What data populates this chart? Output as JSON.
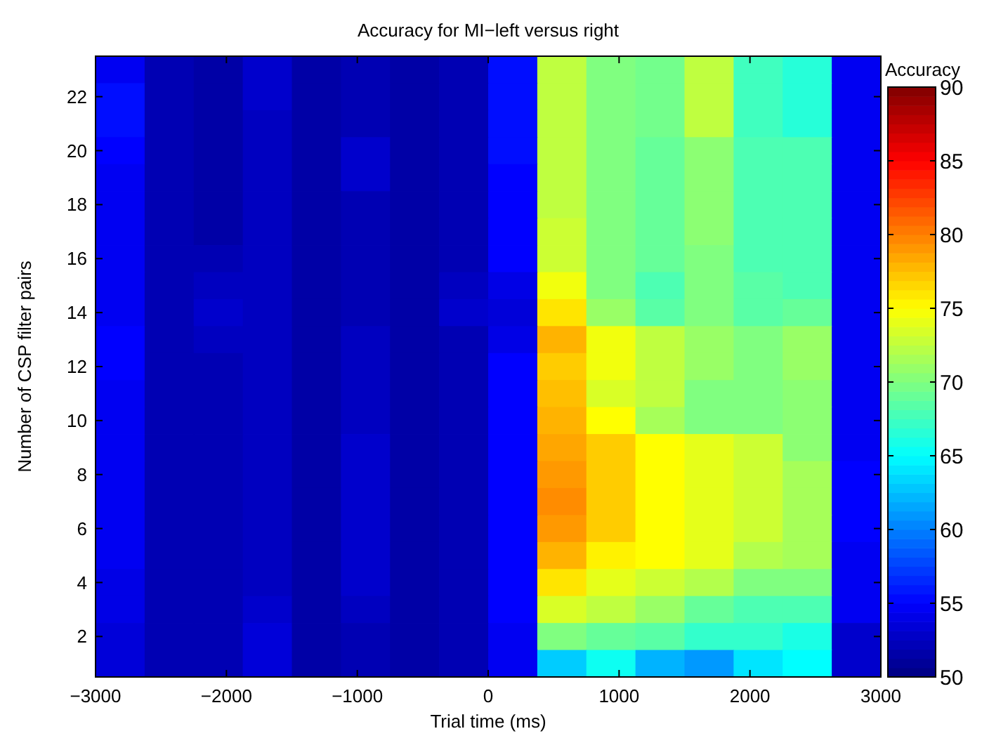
{
  "chart_data": {
    "type": "heatmap",
    "title": "Accuracy for MI−left versus right",
    "xlabel": "Trial time (ms)",
    "ylabel": "Number of CSP filter pairs",
    "clabel": "Accuracy",
    "x": [
      -2812.5,
      -2437.5,
      -2062.5,
      -1687.5,
      -1312.5,
      -937.5,
      -562.5,
      -187.5,
      187.5,
      562.5,
      937.5,
      1312.5,
      1687.5,
      2062.5,
      2437.5,
      2812.5
    ],
    "y": [
      23,
      22,
      21,
      20,
      19,
      18,
      17,
      16,
      15,
      14,
      13,
      12,
      11,
      10,
      9,
      8,
      7,
      6,
      5,
      4,
      3,
      2,
      1
    ],
    "xlim": [
      -3000,
      3000
    ],
    "xticks": [
      {
        "value": -3000,
        "label": "−3000"
      },
      {
        "value": -2000,
        "label": "−2000"
      },
      {
        "value": -1000,
        "label": "−1000"
      },
      0,
      1000,
      2000,
      3000
    ],
    "ylim": [
      0.5,
      23.5
    ],
    "yticks": [
      2,
      4,
      6,
      8,
      10,
      12,
      14,
      16,
      18,
      20,
      22
    ],
    "clim": [
      50,
      90
    ],
    "cticks": [
      50,
      55,
      60,
      65,
      70,
      75,
      80,
      85,
      90
    ],
    "cells": [
      [
        54.5,
        52,
        51.5,
        53,
        51.5,
        52,
        51.5,
        52,
        55.5,
        72.5,
        70,
        69.5,
        72.5,
        67.5,
        66.5,
        54.5
      ],
      [
        55.5,
        52,
        51.5,
        53,
        51.5,
        52,
        51.5,
        52,
        55.5,
        72.5,
        70,
        69.5,
        72.5,
        67.5,
        66.5,
        54.5
      ],
      [
        55.5,
        52,
        51.5,
        52.5,
        51.5,
        52,
        51.5,
        52,
        55.5,
        72.5,
        70,
        69.5,
        72.5,
        67.5,
        66.5,
        54.5
      ],
      [
        55,
        52,
        51.5,
        52.5,
        51.5,
        53,
        51.5,
        52,
        55.5,
        72.5,
        70,
        69,
        70.5,
        68,
        68,
        54.5
      ],
      [
        54.5,
        52,
        51.5,
        52.5,
        51.5,
        53,
        51.5,
        52,
        55,
        72.5,
        70,
        69,
        70.5,
        68,
        68,
        54.5
      ],
      [
        54.5,
        52,
        51.5,
        52.5,
        51.5,
        52,
        51.5,
        52,
        55,
        72.5,
        70,
        69,
        70.5,
        68,
        68,
        54.5
      ],
      [
        54.5,
        52,
        51.5,
        52.5,
        51.5,
        52,
        51.5,
        52,
        55,
        73,
        70,
        69,
        70.5,
        68,
        68,
        54.5
      ],
      [
        54.5,
        52,
        52,
        52.5,
        51.5,
        52,
        51.5,
        52,
        55,
        73,
        70,
        69,
        70,
        68,
        68,
        54.5
      ],
      [
        54.5,
        52,
        52.5,
        52.5,
        51.5,
        52,
        51.5,
        52.5,
        54,
        74.5,
        70,
        68,
        70,
        68.5,
        68,
        54.5
      ],
      [
        54.5,
        52,
        53,
        52.5,
        51.5,
        52,
        51.5,
        53,
        53.5,
        76,
        71,
        68.5,
        70,
        68.5,
        69,
        54.5
      ],
      [
        55,
        52,
        52.5,
        52.5,
        51.5,
        52.5,
        51.5,
        52,
        54,
        78,
        74.5,
        72.5,
        71,
        70,
        71,
        54.5
      ],
      [
        55,
        52,
        52,
        52.5,
        51.5,
        52.5,
        51.5,
        52,
        55,
        77,
        74.5,
        72.5,
        71,
        70,
        71,
        54.5
      ],
      [
        54.5,
        52,
        52,
        52.5,
        51.5,
        52.5,
        51.5,
        52,
        55,
        77.5,
        73.5,
        72.5,
        70,
        70,
        70.5,
        54.5
      ],
      [
        54.5,
        52,
        52,
        52.5,
        51.5,
        52.5,
        51.5,
        52,
        55,
        78,
        75,
        71.5,
        70,
        70,
        70.5,
        54.5
      ],
      [
        54.5,
        52,
        52,
        52.5,
        51.5,
        53,
        51.5,
        52,
        55,
        78.5,
        77,
        75,
        74,
        73,
        70.5,
        54.5
      ],
      [
        54.5,
        52,
        52,
        52.5,
        51.5,
        53,
        51.5,
        52,
        55,
        79,
        77,
        75,
        74,
        73,
        71.5,
        55
      ],
      [
        54.5,
        52,
        52,
        52.5,
        51.5,
        53,
        51.5,
        52,
        55,
        79.5,
        77,
        75,
        74,
        73,
        71.5,
        55
      ],
      [
        54.5,
        52,
        52,
        52.5,
        51.5,
        53,
        51.5,
        52,
        55,
        79,
        77,
        75,
        74,
        73,
        71.5,
        55
      ],
      [
        54.5,
        52,
        52,
        52.5,
        51.5,
        53,
        51.5,
        52,
        55,
        78,
        75.5,
        75,
        74,
        72,
        71.5,
        54.5
      ],
      [
        54,
        52,
        52,
        52.5,
        51.5,
        53,
        51.5,
        52,
        55,
        76,
        74,
        73,
        72,
        70,
        70,
        54.5
      ],
      [
        54,
        52,
        52,
        53,
        51.5,
        52.5,
        51.5,
        52,
        55,
        73.5,
        72.5,
        71,
        69,
        68,
        68,
        54.5
      ],
      [
        53.5,
        52,
        52,
        53.5,
        51.5,
        52,
        51.5,
        52,
        54.5,
        70,
        69,
        68.5,
        67,
        67,
        66,
        53
      ],
      [
        53.5,
        52,
        52,
        53.5,
        51.5,
        52,
        51.5,
        52,
        54.5,
        63,
        65.5,
        62,
        61,
        64,
        65,
        53
      ]
    ]
  }
}
